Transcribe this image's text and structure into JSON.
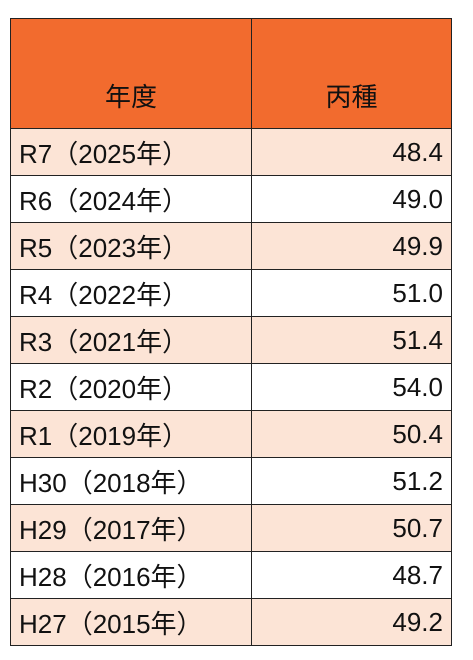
{
  "table": {
    "header": [
      "年度",
      "丙種"
    ],
    "rows": [
      [
        "R7（2025年）",
        "48.4"
      ],
      [
        "R6（2024年）",
        "49.0"
      ],
      [
        "R5（2023年）",
        "49.9"
      ],
      [
        "R4（2022年）",
        "51.0"
      ],
      [
        "R3（2021年）",
        "51.4"
      ],
      [
        "R2（2020年）",
        "54.0"
      ],
      [
        "R1（2019年）",
        "50.4"
      ],
      [
        "H30（2018年）",
        "51.2"
      ],
      [
        "H29（2017年）",
        "50.7"
      ],
      [
        "H28（2016年）",
        "48.7"
      ],
      [
        "H27（2015年）",
        "49.2"
      ]
    ]
  }
}
